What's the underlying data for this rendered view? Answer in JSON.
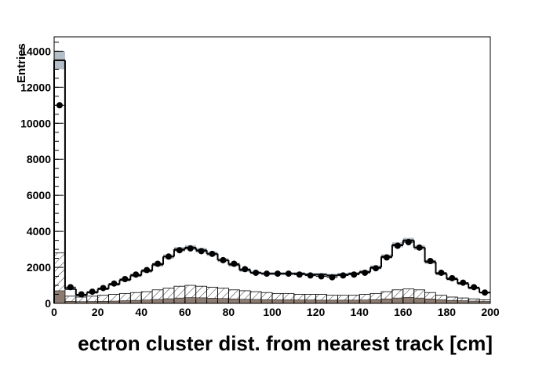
{
  "chart_data": {
    "type": "histogram",
    "xlabel": "ectron cluster dist. from nearest track [cm]",
    "ylabel": "Entries",
    "bins": [
      0,
      5,
      10,
      15,
      20,
      25,
      30,
      35,
      40,
      45,
      50,
      55,
      60,
      65,
      70,
      75,
      80,
      85,
      90,
      95,
      100,
      105,
      110,
      115,
      120,
      125,
      130,
      135,
      140,
      145,
      150,
      155,
      160,
      165,
      170,
      175,
      180,
      185,
      190,
      195,
      200
    ],
    "xlim": [
      0,
      200
    ],
    "xticks": [
      0,
      20,
      40,
      60,
      80,
      100,
      120,
      140,
      160,
      180,
      200
    ],
    "ylim": [
      0,
      14800
    ],
    "yticks": [
      0,
      2000,
      4000,
      6000,
      8000,
      10000,
      12000,
      14000
    ],
    "series": [
      {
        "style": "hatch",
        "color": "#000000",
        "values": [
          2800,
          400,
          350,
          400,
          450,
          500,
          550,
          600,
          650,
          750,
          850,
          950,
          1000,
          950,
          900,
          850,
          750,
          700,
          650,
          600,
          550,
          550,
          500,
          500,
          500,
          450,
          450,
          450,
          500,
          550,
          650,
          750,
          800,
          750,
          600,
          450,
          350,
          300,
          250,
          200
        ]
      },
      {
        "style": "fill",
        "color": "#8c7b70",
        "values": [
          700,
          120,
          100,
          110,
          120,
          130,
          150,
          170,
          190,
          220,
          260,
          300,
          320,
          310,
          290,
          270,
          250,
          230,
          220,
          210,
          200,
          200,
          190,
          190,
          180,
          180,
          180,
          180,
          190,
          210,
          250,
          300,
          330,
          300,
          250,
          200,
          170,
          150,
          130,
          110
        ]
      },
      {
        "style": "step",
        "color": "#000000",
        "band_color": "#b4bec8",
        "values": [
          13500,
          800,
          450,
          600,
          800,
          1050,
          1300,
          1550,
          1800,
          2150,
          2600,
          3000,
          3100,
          2950,
          2750,
          2400,
          2150,
          1850,
          1700,
          1650,
          1650,
          1650,
          1650,
          1600,
          1600,
          1550,
          1600,
          1650,
          1750,
          2000,
          2600,
          3250,
          3500,
          3100,
          2300,
          1650,
          1350,
          1100,
          850,
          600
        ],
        "errors": [
          500,
          60,
          50,
          50,
          60,
          70,
          80,
          90,
          100,
          110,
          120,
          130,
          130,
          130,
          120,
          110,
          110,
          100,
          90,
          90,
          90,
          90,
          90,
          90,
          90,
          90,
          90,
          90,
          100,
          110,
          120,
          140,
          140,
          130,
          110,
          90,
          80,
          70,
          60,
          50
        ]
      },
      {
        "style": "points",
        "color": "#000000",
        "values": [
          11000,
          900,
          500,
          650,
          850,
          1100,
          1350,
          1600,
          1850,
          2200,
          2600,
          2950,
          3050,
          2900,
          2750,
          2400,
          2200,
          1900,
          1700,
          1650,
          1650,
          1650,
          1600,
          1550,
          1500,
          1450,
          1550,
          1600,
          1700,
          1950,
          2550,
          3200,
          3400,
          3100,
          2350,
          1700,
          1400,
          1150,
          900,
          600
        ]
      }
    ]
  }
}
